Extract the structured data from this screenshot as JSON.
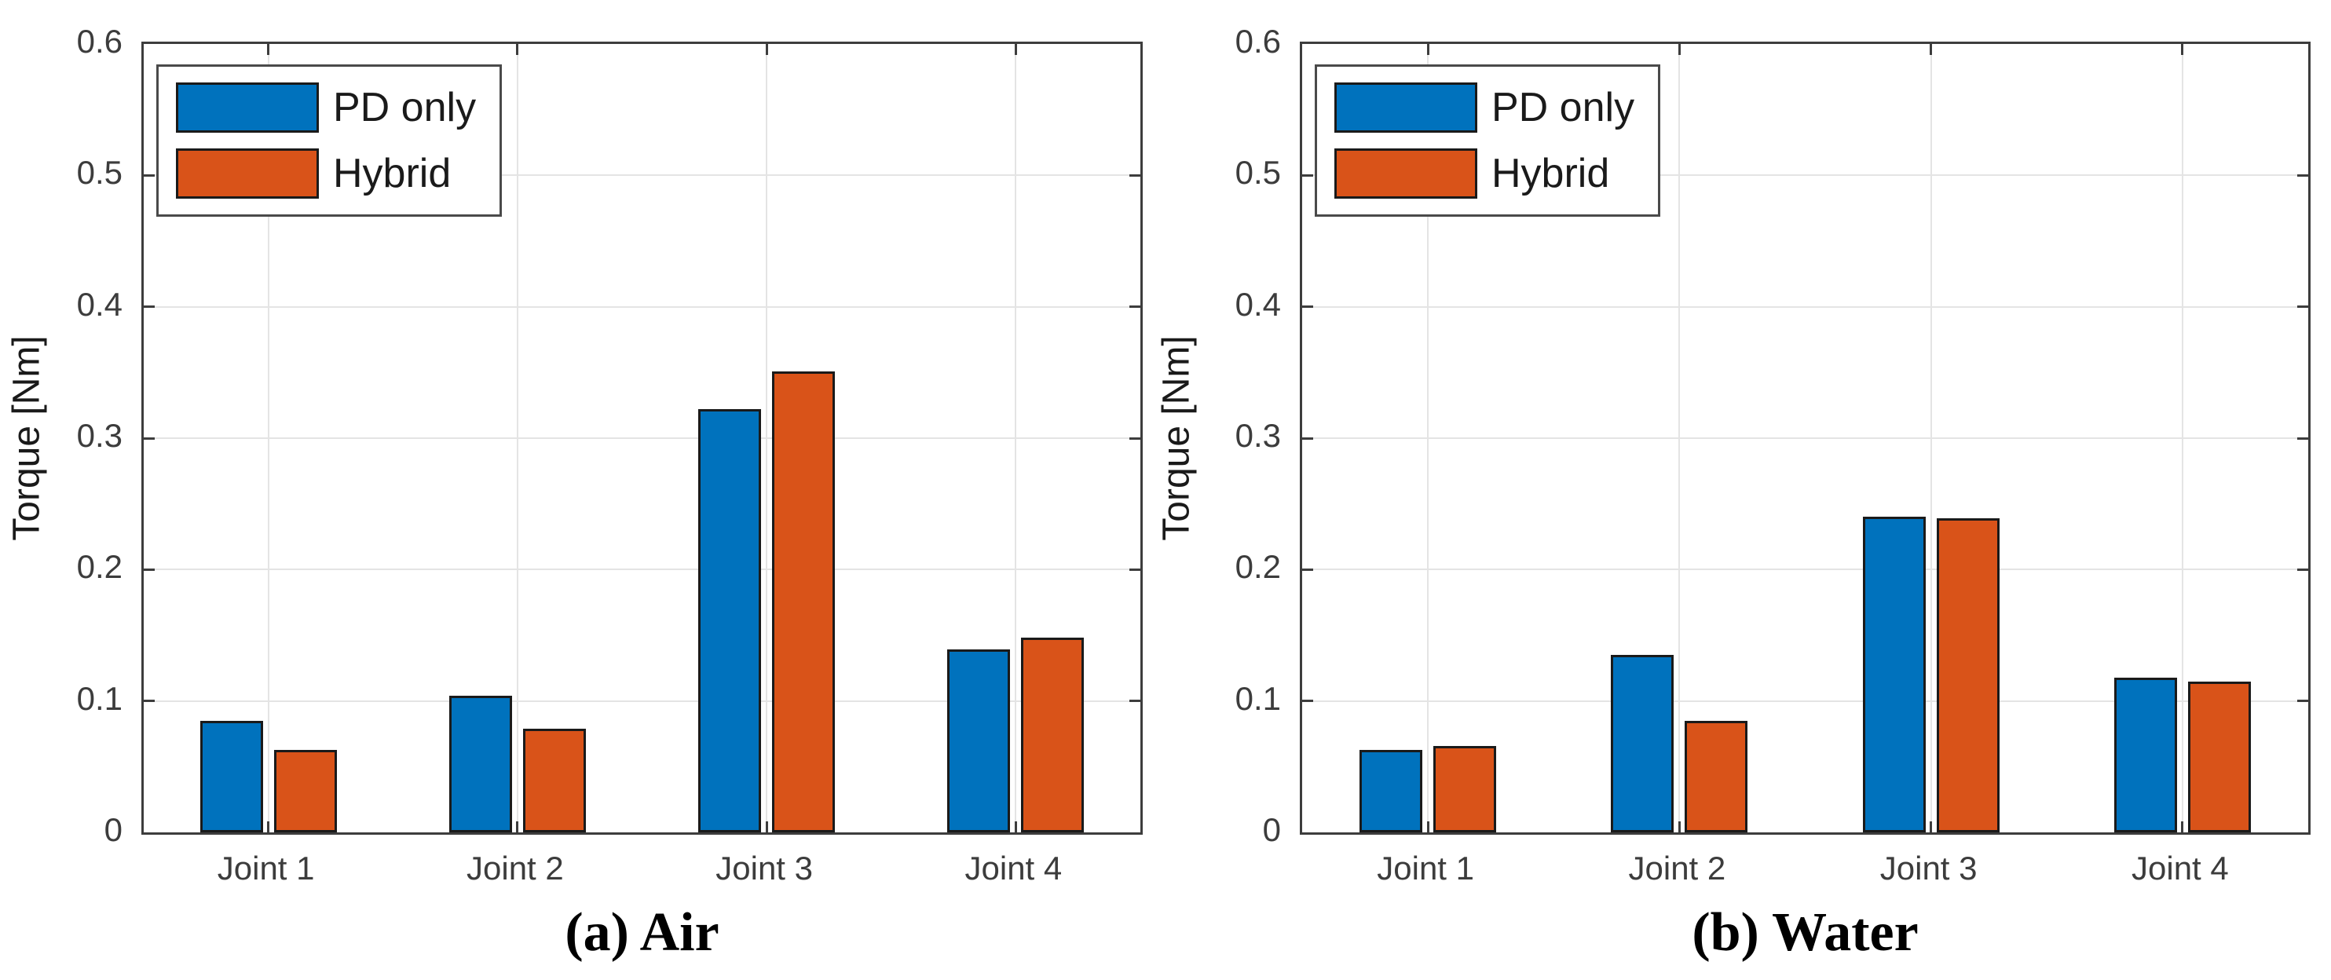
{
  "figure": {
    "background": "#FFFFFF",
    "axis_color": "#3D3D3D",
    "grid_color": "#E4E4E4",
    "tick_label_color": "#3C3C3C",
    "bar_edge_color": "#1A1A1A",
    "legend_border_color": "#4A4A4A",
    "accent_blue": "#0072BD",
    "accent_orange": "#D95319"
  },
  "chart_data": [
    {
      "type": "bar",
      "title": "(a) Air",
      "ylabel": "Torque [Nm]",
      "categories": [
        "Joint 1",
        "Joint 2",
        "Joint 3",
        "Joint 4"
      ],
      "series": [
        {
          "name": "PD only",
          "color": "#0072BD",
          "values": [
            0.085,
            0.104,
            0.322,
            0.139
          ]
        },
        {
          "name": "Hybrid",
          "color": "#D95319",
          "values": [
            0.063,
            0.079,
            0.351,
            0.148
          ]
        }
      ],
      "ylim": [
        0,
        0.6
      ],
      "yticks": [
        0,
        0.1,
        0.2,
        0.3,
        0.4,
        0.5,
        0.6
      ],
      "ytick_labels": [
        "0",
        "0.1",
        "0.2",
        "0.3",
        "0.4",
        "0.5",
        "0.6"
      ],
      "grid": true,
      "legend_position": "top-left"
    },
    {
      "type": "bar",
      "title": "(b) Water",
      "ylabel": "Torque [Nm]",
      "categories": [
        "Joint 1",
        "Joint 2",
        "Joint 3",
        "Joint 4"
      ],
      "series": [
        {
          "name": "PD only",
          "color": "#0072BD",
          "values": [
            0.063,
            0.135,
            0.24,
            0.118
          ]
        },
        {
          "name": "Hybrid",
          "color": "#D95319",
          "values": [
            0.066,
            0.085,
            0.239,
            0.115
          ]
        }
      ],
      "ylim": [
        0,
        0.6
      ],
      "yticks": [
        0,
        0.1,
        0.2,
        0.3,
        0.4,
        0.5,
        0.6
      ],
      "ytick_labels": [
        "0",
        "0.1",
        "0.2",
        "0.3",
        "0.4",
        "0.5",
        "0.6"
      ],
      "grid": true,
      "legend_position": "top-left"
    }
  ]
}
